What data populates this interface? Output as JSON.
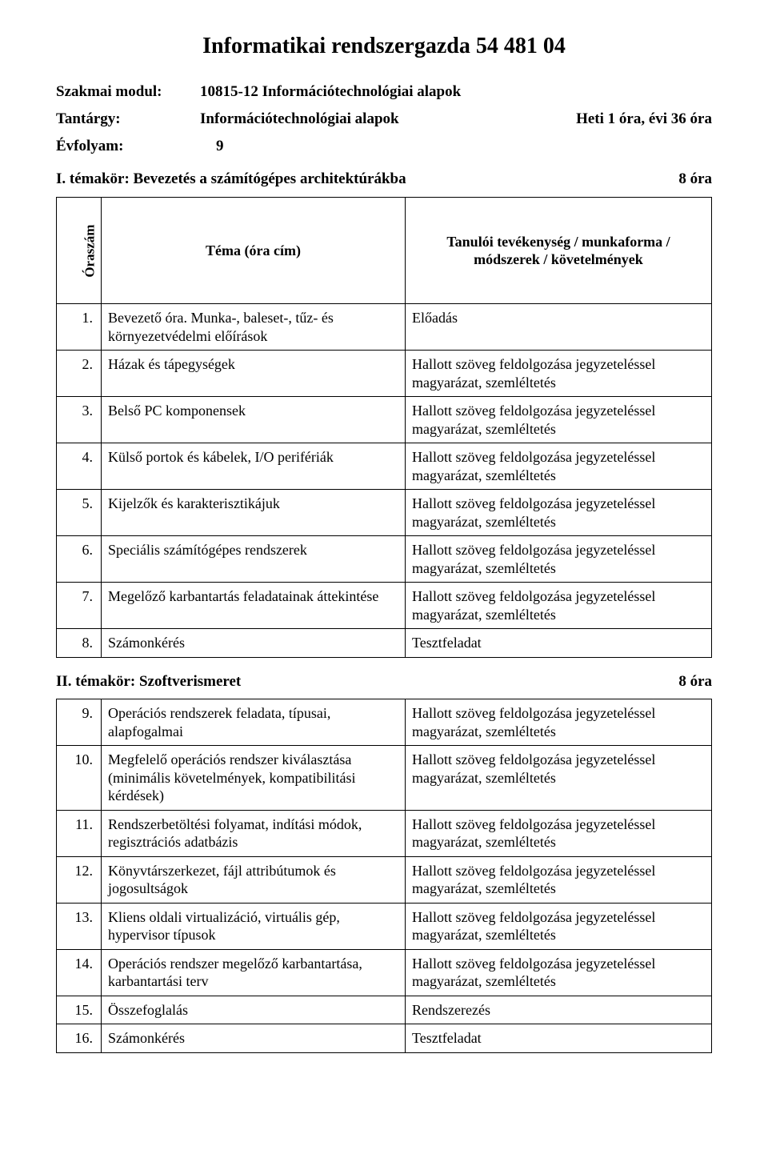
{
  "title": "Informatikai rendszergazda 54 481 04",
  "meta": {
    "module_label": "Szakmai modul:",
    "module_value": "10815-12 Információtechnológiai alapok",
    "subject_label": "Tantárgy:",
    "subject_value": "Információtechnológiai alapok",
    "subject_extra": "Heti 1 óra, évi 36 óra",
    "grade_label": "Évfolyam:",
    "grade_value": "9"
  },
  "topic1": {
    "label": "I. témakör: Bevezetés a számítógépes architektúrákba",
    "hours": "8 óra"
  },
  "table_header": {
    "oraszam": "Óraszám",
    "theme": "Téma (óra cím)",
    "activity": "Tanulói tevékenység / munkaforma / módszerek / követelmények"
  },
  "rows1": [
    {
      "n": "1.",
      "theme": "Bevezető óra. Munka-, baleset-, tűz- és környezetvédelmi előírások",
      "act": "Előadás"
    },
    {
      "n": "2.",
      "theme": "Házak és tápegységek",
      "act": "Hallott szöveg feldolgozása jegyzeteléssel magyarázat, szemléltetés"
    },
    {
      "n": "3.",
      "theme": "Belső PC komponensek",
      "act": "Hallott szöveg feldolgozása jegyzeteléssel magyarázat, szemléltetés"
    },
    {
      "n": "4.",
      "theme": "Külső portok és kábelek, I/O perifériák",
      "act": "Hallott szöveg feldolgozása jegyzeteléssel magyarázat, szemléltetés"
    },
    {
      "n": "5.",
      "theme": "Kijelzők és karakterisztikájuk",
      "act": "Hallott szöveg feldolgozása jegyzeteléssel magyarázat, szemléltetés"
    },
    {
      "n": "6.",
      "theme": "Speciális számítógépes rendszerek",
      "act": "Hallott szöveg feldolgozása jegyzeteléssel magyarázat, szemléltetés"
    },
    {
      "n": "7.",
      "theme": "Megelőző karbantartás feladatainak áttekintése",
      "act": "Hallott szöveg feldolgozása jegyzeteléssel magyarázat, szemléltetés"
    },
    {
      "n": "8.",
      "theme": "Számonkérés",
      "act": "Tesztfeladat"
    }
  ],
  "topic2": {
    "label": "II. témakör: Szoftverismeret",
    "hours": "8 óra"
  },
  "rows2": [
    {
      "n": "9.",
      "theme": "Operációs rendszerek feladata, típusai, alapfogalmai",
      "act": "Hallott szöveg feldolgozása jegyzeteléssel magyarázat, szemléltetés"
    },
    {
      "n": "10.",
      "theme": "Megfelelő operációs rendszer kiválasztása (minimális követelmények, kompatibilitási kérdések)",
      "act": "Hallott szöveg feldolgozása jegyzeteléssel magyarázat, szemléltetés"
    },
    {
      "n": "11.",
      "theme": "Rendszerbetöltési folyamat, indítási módok, regisztrációs adatbázis",
      "act": "Hallott szöveg feldolgozása jegyzeteléssel magyarázat, szemléltetés"
    },
    {
      "n": "12.",
      "theme": "Könyvtárszerkezet, fájl attribútumok és jogosultságok",
      "act": "Hallott szöveg feldolgozása jegyzeteléssel magyarázat, szemléltetés"
    },
    {
      "n": "13.",
      "theme": "Kliens oldali virtualizáció, virtuális gép, hypervisor típusok",
      "act": "Hallott szöveg feldolgozása jegyzeteléssel magyarázat, szemléltetés"
    },
    {
      "n": "14.",
      "theme": "Operációs rendszer megelőző karbantartása, karbantartási terv",
      "act": "Hallott szöveg feldolgozása jegyzeteléssel magyarázat, szemléltetés"
    },
    {
      "n": "15.",
      "theme": "Összefoglalás",
      "act": "Rendszerezés"
    },
    {
      "n": "16.",
      "theme": "Számonkérés",
      "act": "Tesztfeladat"
    }
  ]
}
